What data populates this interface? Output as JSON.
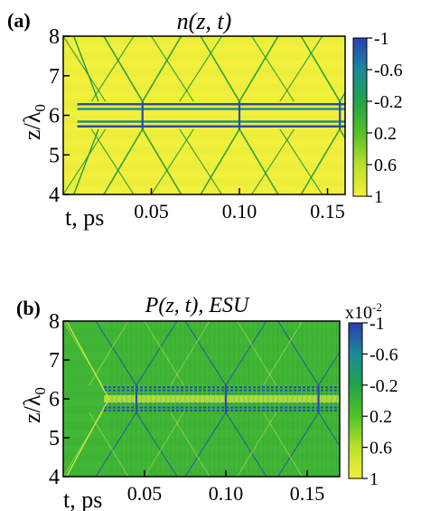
{
  "chart_data": [
    {
      "type": "heatmap",
      "panel_label": "(a)",
      "title": "n(z, t)",
      "xlabel": "t, ps",
      "ylabel": "z/λ0",
      "x_ticks": [
        {
          "value": 0.05,
          "label": "0.05"
        },
        {
          "value": 0.1,
          "label": "0.10"
        },
        {
          "value": 0.15,
          "label": "0.15"
        }
      ],
      "y_ticks": [
        {
          "value": 4,
          "label": "4"
        },
        {
          "value": 5,
          "label": "5"
        },
        {
          "value": 6,
          "label": "6"
        },
        {
          "value": 7,
          "label": "7"
        },
        {
          "value": 8,
          "label": "8"
        }
      ],
      "xlim": [
        0.0,
        0.16
      ],
      "ylim": [
        4,
        8
      ],
      "colorbar": {
        "ticks": [
          "-1",
          "-0.6",
          "-0.2",
          "0.2",
          "0.6",
          "1"
        ],
        "range": [
          -1,
          1
        ],
        "multiplier": "",
        "colors": [
          "#2a3fb3",
          "#1a8a9a",
          "#22a24a",
          "#52c228",
          "#b8e02c",
          "#f2f03c"
        ]
      },
      "background_color": "#f2f03c",
      "pattern": {
        "band_center_z": 6.0,
        "band_half_width": 0.35,
        "crossings_t": [
          0.045,
          0.1,
          0.157
        ],
        "vertical_lines_t": [
          0.02,
          0.07,
          0.127
        ],
        "density": "low"
      }
    },
    {
      "type": "heatmap",
      "panel_label": "(b)",
      "title": "P(z, t), ESU",
      "xlabel": "t, ps",
      "ylabel": "z/λ0",
      "x_ticks": [
        {
          "value": 0.05,
          "label": "0.05"
        },
        {
          "value": 0.1,
          "label": "0.10"
        },
        {
          "value": 0.15,
          "label": "0.15"
        }
      ],
      "y_ticks": [
        {
          "value": 4,
          "label": "4"
        },
        {
          "value": 5,
          "label": "5"
        },
        {
          "value": 6,
          "label": "6"
        },
        {
          "value": 7,
          "label": "7"
        },
        {
          "value": 8,
          "label": "8"
        }
      ],
      "xlim": [
        0.0,
        0.17
      ],
      "ylim": [
        4,
        8
      ],
      "colorbar": {
        "ticks": [
          "-1",
          "-0.6",
          "-0.2",
          "0.2",
          "0.6",
          "1"
        ],
        "range": [
          -1,
          1
        ],
        "multiplier": "x10",
        "multiplier_exp": "-2",
        "colors": [
          "#2a3fb3",
          "#1a8a9a",
          "#22a24a",
          "#52c228",
          "#b8e02c",
          "#f2f03c"
        ]
      },
      "background_color": "#3eb334",
      "pattern": {
        "band_center_z": 6.0,
        "band_half_width": 0.35,
        "crossings_t": [
          0.045,
          0.1,
          0.157
        ],
        "vertical_lines_t": [
          0.02,
          0.07,
          0.127
        ],
        "density": "high"
      }
    }
  ]
}
